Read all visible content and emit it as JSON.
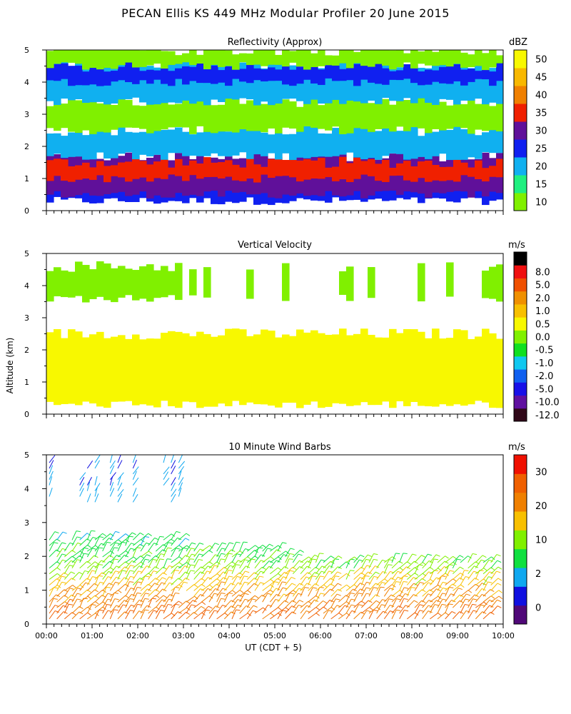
{
  "chart_data": {
    "type": "heatmap",
    "title": "PECAN Ellis KS 449 MHz Modular Profiler 20 June 2015",
    "xlabel": "UT  (CDT + 5)",
    "ylabel": "Altitude (km)",
    "x_ticks": [
      "00:00",
      "01:00",
      "02:00",
      "03:00",
      "04:00",
      "05:00",
      "06:00",
      "07:00",
      "08:00",
      "09:00",
      "10:00"
    ],
    "xlim_hours": [
      0,
      10
    ],
    "panels": [
      {
        "id": "reflectivity",
        "title": "Reflectivity (Approx)",
        "unit": "dBZ",
        "ylim": [
          0,
          5
        ],
        "y_ticks": [
          "0",
          "1",
          "2",
          "3",
          "4",
          "5"
        ],
        "colorbar": {
          "labels": [
            "10",
            "15",
            "20",
            "25",
            "30",
            "35",
            "40",
            "45",
            "50"
          ],
          "colors": [
            "#80f000",
            "#20f080",
            "#10b0f0",
            "#1020f0",
            "#60109a",
            "#f02000",
            "#f08000",
            "#f8b800",
            "#f8f800"
          ]
        },
        "layers": [
          {
            "range_km": [
              0.3,
              1.2
            ],
            "dbz": 25,
            "color": "#1020f0"
          },
          {
            "range_km": [
              0.5,
              1.7
            ],
            "dbz": 30,
            "color": "#60109a"
          },
          {
            "range_km": [
              1.0,
              1.5
            ],
            "dbz": 35,
            "color": "#f02000"
          },
          {
            "range_km": [
              1.7,
              2.5
            ],
            "dbz": 20,
            "color": "#10b0f0"
          },
          {
            "range_km": [
              2.5,
              3.4
            ],
            "dbz": 10,
            "color": "#80f000"
          },
          {
            "range_km": [
              3.4,
              4.6
            ],
            "dbz": 20,
            "color": "#10b0f0"
          },
          {
            "range_km": [
              4.0,
              4.5
            ],
            "dbz": 25,
            "color": "#1020f0"
          },
          {
            "range_km": [
              4.5,
              5.0
            ],
            "dbz": 10,
            "color": "#80f000"
          }
        ]
      },
      {
        "id": "vertical_velocity",
        "title": "Vertical Velocity",
        "unit": "m/s",
        "ylim": [
          0,
          5
        ],
        "y_ticks": [
          "0",
          "1",
          "2",
          "3",
          "4",
          "5"
        ],
        "colorbar": {
          "labels": [
            "-12.0",
            "-10.0",
            "-5.0",
            "-2.0",
            "-1.0",
            "-0.5",
            "0.0",
            "0.5",
            "1.0",
            "2.0",
            "5.0",
            "8.0"
          ],
          "colors": [
            "#300818",
            "#6010a0",
            "#1810e8",
            "#1060f0",
            "#10c8f0",
            "#10e020",
            "#80f000",
            "#f8f800",
            "#f8c000",
            "#f09000",
            "#f05000",
            "#f01010",
            "#000000"
          ]
        },
        "layers": [
          {
            "range_km": [
              0.3,
              2.5
            ],
            "value_ms": 0.0,
            "color": "#f8f800"
          },
          {
            "range_km": [
              3.6,
              4.6
            ],
            "value_ms": -0.5,
            "color": "#80f000"
          }
        ]
      },
      {
        "id": "wind_barbs",
        "title": "10 Minute Wind Barbs",
        "unit": "m/s",
        "ylim": [
          0,
          5
        ],
        "y_ticks": [
          "0",
          "1",
          "2",
          "3",
          "4",
          "5"
        ],
        "colorbar": {
          "labels": [
            "0",
            "2",
            "10",
            "20",
            "30"
          ],
          "colors": [
            "#500878",
            "#1010e0",
            "#10a8f0",
            "#10e040",
            "#80f000",
            "#f8c000",
            "#f08000",
            "#f06000",
            "#f01000"
          ]
        },
        "speed_profile": [
          {
            "alt_km": 0.2,
            "speed_ms": 25
          },
          {
            "alt_km": 1.0,
            "speed_ms": 20
          },
          {
            "alt_km": 1.8,
            "speed_ms": 13
          },
          {
            "alt_km": 2.5,
            "speed_ms": 10
          },
          {
            "alt_km": 4.2,
            "speed_ms": 6
          }
        ]
      }
    ]
  }
}
